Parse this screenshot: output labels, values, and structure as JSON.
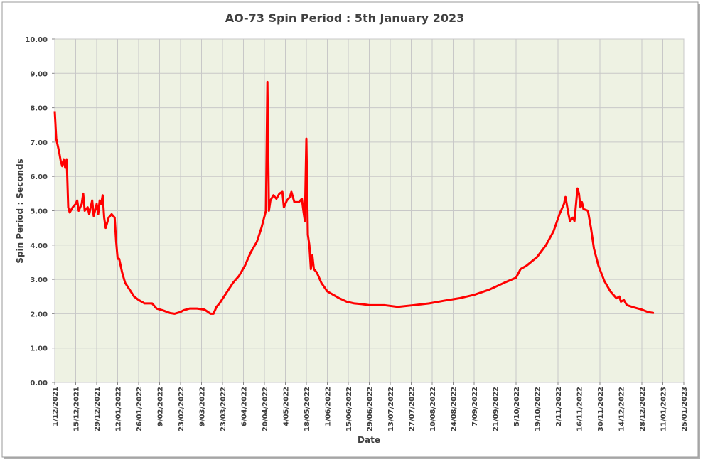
{
  "chart_data": {
    "type": "line",
    "title": "AO-73 Spin Period : 5th January 2023",
    "xlabel": "Date",
    "ylabel": "Spin Period : Seconds",
    "color": "#ff0000",
    "grid": true,
    "x": [
      "1/12/2021",
      "2/12/2021",
      "4/12/2021",
      "5/12/2021",
      "6/12/2021",
      "7/12/2021",
      "8/12/2021",
      "9/12/2021",
      "10/12/2021",
      "11/12/2021",
      "13/12/2021",
      "15/12/2021",
      "16/12/2021",
      "17/12/2021",
      "19/12/2021",
      "20/12/2021",
      "21/12/2021",
      "23/12/2021",
      "24/12/2021",
      "26/12/2021",
      "27/12/2021",
      "29/12/2021",
      "30/12/2021",
      "31/12/2021",
      "1/01/2022",
      "2/01/2022",
      "3/01/2022",
      "4/01/2022",
      "6/01/2022",
      "8/01/2022",
      "10/01/2022",
      "11/01/2022",
      "12/01/2022",
      "13/01/2022",
      "15/01/2022",
      "17/01/2022",
      "20/01/2022",
      "23/01/2022",
      "26/01/2022",
      "30/01/2022",
      "4/02/2022",
      "7/02/2022",
      "11/02/2022",
      "16/02/2022",
      "19/02/2022",
      "23/02/2022",
      "25/02/2022",
      "1/03/2022",
      "6/03/2022",
      "11/03/2022",
      "15/03/2022",
      "17/03/2022",
      "19/03/2022",
      "21/03/2022",
      "24/03/2022",
      "27/03/2022",
      "30/03/2022",
      "3/04/2022",
      "7/04/2022",
      "11/04/2022",
      "15/04/2022",
      "18/04/2022",
      "21/04/2022",
      "22/04/2022",
      "23/04/2022",
      "24/04/2022",
      "26/04/2022",
      "28/04/2022",
      "30/04/2022",
      "2/05/2022",
      "3/05/2022",
      "5/05/2022",
      "7/05/2022",
      "8/05/2022",
      "10/05/2022",
      "13/05/2022",
      "15/05/2022",
      "16/05/2022",
      "17/05/2022",
      "18/05/2022",
      "19/05/2022",
      "20/05/2022",
      "21/05/2022",
      "22/05/2022",
      "23/05/2022",
      "25/05/2022",
      "28/05/2022",
      "1/06/2022",
      "5/06/2022",
      "9/06/2022",
      "14/06/2022",
      "19/06/2022",
      "24/06/2022",
      "29/06/2022",
      "9/07/2022",
      "18/07/2022",
      "29/07/2022",
      "8/08/2022",
      "18/08/2022",
      "28/08/2022",
      "7/09/2022",
      "17/09/2022",
      "27/09/2022",
      "5/10/2022",
      "8/10/2022",
      "12/10/2022",
      "19/10/2022",
      "25/10/2022",
      "30/10/2022",
      "3/11/2022",
      "6/11/2022",
      "7/11/2022",
      "9/11/2022",
      "10/11/2022",
      "12/11/2022",
      "13/11/2022",
      "15/11/2022",
      "16/11/2022",
      "17/11/2022",
      "18/11/2022",
      "19/11/2022",
      "22/11/2022",
      "24/11/2022",
      "26/11/2022",
      "29/11/2022",
      "3/12/2022",
      "7/12/2022",
      "11/12/2022",
      "13/12/2022",
      "14/12/2022",
      "16/12/2022",
      "18/12/2022",
      "23/12/2022",
      "28/12/2022",
      "1/01/2023",
      "5/01/2023"
    ],
    "values": [
      7.9,
      7.1,
      6.7,
      6.45,
      6.3,
      6.5,
      6.25,
      6.5,
      5.1,
      4.95,
      5.1,
      5.2,
      5.3,
      5.0,
      5.2,
      5.5,
      5.0,
      5.1,
      4.9,
      5.3,
      4.85,
      5.2,
      4.9,
      5.3,
      5.2,
      5.45,
      4.8,
      4.5,
      4.8,
      4.9,
      4.8,
      4.1,
      3.6,
      3.6,
      3.2,
      2.9,
      2.7,
      2.5,
      2.4,
      2.3,
      2.3,
      2.15,
      2.1,
      2.02,
      2.0,
      2.05,
      2.1,
      2.15,
      2.15,
      2.12,
      2.0,
      2.0,
      2.2,
      2.3,
      2.5,
      2.7,
      2.9,
      3.1,
      3.4,
      3.8,
      4.1,
      4.5,
      5.0,
      8.75,
      5.0,
      5.3,
      5.45,
      5.35,
      5.5,
      5.55,
      5.1,
      5.3,
      5.4,
      5.55,
      5.25,
      5.25,
      5.35,
      5.0,
      4.7,
      7.1,
      4.3,
      4.0,
      3.3,
      3.7,
      3.3,
      3.2,
      2.9,
      2.65,
      2.55,
      2.45,
      2.35,
      2.3,
      2.28,
      2.25,
      2.25,
      2.2,
      2.25,
      2.3,
      2.38,
      2.45,
      2.55,
      2.7,
      2.9,
      3.05,
      3.3,
      3.4,
      3.65,
      4.0,
      4.4,
      4.9,
      5.2,
      5.4,
      4.9,
      4.7,
      4.8,
      4.7,
      5.65,
      5.5,
      5.1,
      5.25,
      5.05,
      5.0,
      4.5,
      3.9,
      3.4,
      2.95,
      2.65,
      2.45,
      2.5,
      2.35,
      2.4,
      2.25,
      2.18,
      2.12,
      2.05,
      2.02
    ],
    "xlim": [
      "1/12/2021",
      "25/01/2023"
    ],
    "xticks": [
      "1/12/2021",
      "15/12/2021",
      "29/12/2021",
      "12/01/2022",
      "26/01/2022",
      "9/02/2022",
      "23/02/2022",
      "9/03/2022",
      "23/03/2022",
      "6/04/2022",
      "20/04/2022",
      "4/05/2022",
      "18/05/2022",
      "1/06/2022",
      "15/06/2022",
      "29/06/2022",
      "13/07/2022",
      "27/07/2022",
      "10/08/2022",
      "24/08/2022",
      "7/09/2022",
      "21/09/2022",
      "5/10/2022",
      "19/10/2022",
      "2/11/2022",
      "16/11/2022",
      "30/11/2022",
      "14/12/2022",
      "28/12/2022",
      "11/01/2023",
      "25/01/2023"
    ],
    "ylim": [
      0,
      10
    ],
    "yticks": [
      {
        "value": 0,
        "label": "0.00"
      },
      {
        "value": 1,
        "label": "1.00"
      },
      {
        "value": 2,
        "label": "2.00"
      },
      {
        "value": 3,
        "label": "3.00"
      },
      {
        "value": 4,
        "label": "4.00"
      },
      {
        "value": 5,
        "label": "5.00"
      },
      {
        "value": 6,
        "label": "6.00"
      },
      {
        "value": 7,
        "label": "7.00"
      },
      {
        "value": 8,
        "label": "8.00"
      },
      {
        "value": 9,
        "label": "9.00"
      },
      {
        "value": 10,
        "label": "10.00"
      }
    ]
  }
}
